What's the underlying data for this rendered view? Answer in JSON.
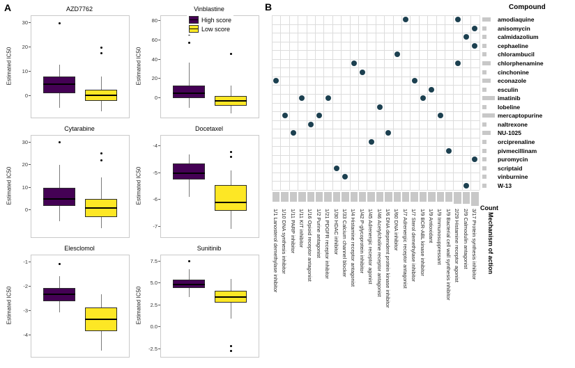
{
  "figure": {
    "panel_a_label": "A",
    "panel_b_label": "B",
    "legend": {
      "high": {
        "label": "High score",
        "color": "#440154"
      },
      "low": {
        "label": "Low score",
        "color": "#FDE725"
      }
    }
  },
  "chart_data": [
    {
      "type": "boxplot",
      "title": "AZD7762",
      "ylabel": "Estimated IC50",
      "ylim": [
        -9,
        33
      ],
      "yticks": [
        [
          0,
          "0"
        ],
        [
          10,
          "10"
        ],
        [
          20,
          "20"
        ],
        [
          30,
          "30"
        ]
      ],
      "series": [
        {
          "name": "High score",
          "color": "#440154",
          "whisker_low": -5,
          "q1": 1,
          "median": 4.8,
          "q3": 8,
          "whisker_high": 13,
          "outliers": [
            30
          ]
        },
        {
          "name": "Low score",
          "color": "#FDE725",
          "whisker_low": -6.5,
          "q1": -2.2,
          "median": 0.3,
          "q3": 2.6,
          "whisker_high": 8,
          "outliers": [
            17.5,
            20
          ]
        }
      ]
    },
    {
      "type": "boxplot",
      "title": "Vinblastine",
      "ylabel": "Estimated IC50",
      "ylim": [
        -20,
        85
      ],
      "yticks": [
        [
          0,
          "0"
        ],
        [
          20,
          "20"
        ],
        [
          40,
          "40"
        ],
        [
          60,
          "60"
        ],
        [
          80,
          "80"
        ]
      ],
      "series": [
        {
          "name": "High score",
          "color": "#440154",
          "whisker_low": -10,
          "q1": 0,
          "median": 5,
          "q3": 13,
          "whisker_high": 37,
          "outliers": [
            57,
            66,
            79
          ]
        },
        {
          "name": "Low score",
          "color": "#FDE725",
          "whisker_low": -16,
          "q1": -8,
          "median": -3,
          "q3": 2.5,
          "whisker_high": 13,
          "outliers": [
            46
          ]
        }
      ]
    },
    {
      "type": "boxplot",
      "title": "Cytarabine",
      "ylabel": "Estimated IC50",
      "ylim": [
        -12,
        33
      ],
      "yticks": [
        [
          0,
          "0"
        ],
        [
          10,
          "10"
        ],
        [
          20,
          "20"
        ],
        [
          30,
          "30"
        ]
      ],
      "series": [
        {
          "name": "High score",
          "color": "#440154",
          "whisker_low": -5,
          "q1": 2,
          "median": 5,
          "q3": 10,
          "whisker_high": 20,
          "outliers": [
            30
          ]
        },
        {
          "name": "Low score",
          "color": "#FDE725",
          "whisker_low": -8,
          "q1": -3,
          "median": 0.8,
          "q3": 5,
          "whisker_high": 14.5,
          "outliers": [
            22,
            25
          ]
        }
      ]
    },
    {
      "type": "boxplot",
      "title": "Docetaxel",
      "ylabel": "Estimated IC50",
      "ylim": [
        -7.4,
        -3.6
      ],
      "yticks": [
        [
          -4,
          "-4"
        ],
        [
          -5,
          "-5"
        ],
        [
          -6,
          "-6"
        ],
        [
          -7,
          "-7"
        ]
      ],
      "series": [
        {
          "name": "High score",
          "color": "#440154",
          "whisker_low": -5.9,
          "q1": -5.25,
          "median": -5.0,
          "q3": -4.65,
          "whisker_high": -4.3,
          "outliers": []
        },
        {
          "name": "Low score",
          "color": "#FDE725",
          "whisker_low": -7.1,
          "q1": -6.4,
          "median": -6.1,
          "q3": -5.45,
          "whisker_high": -4.9,
          "outliers": [
            -4.4,
            -4.2
          ]
        }
      ]
    },
    {
      "type": "boxplot",
      "title": "Elesclomol",
      "ylabel": "Estimated IC50",
      "ylim": [
        -4.9,
        -0.7
      ],
      "yticks": [
        [
          -1,
          "-1"
        ],
        [
          -2,
          "-2"
        ],
        [
          -3,
          "-3"
        ],
        [
          -4,
          "-4"
        ]
      ],
      "series": [
        {
          "name": "High score",
          "color": "#440154",
          "whisker_low": -3.05,
          "q1": -2.6,
          "median": -2.3,
          "q3": -2.05,
          "whisker_high": -1.55,
          "outliers": [
            -1.05
          ]
        },
        {
          "name": "Low score",
          "color": "#FDE725",
          "whisker_low": -4.65,
          "q1": -3.85,
          "median": -3.35,
          "q3": -2.85,
          "whisker_high": -2.3,
          "outliers": []
        }
      ]
    },
    {
      "type": "boxplot",
      "title": "Sunitinib",
      "ylabel": "Estimated IC50",
      "ylim": [
        -3.4,
        8.2
      ],
      "yticks": [
        [
          7.5,
          "7.5"
        ],
        [
          5,
          "5.0"
        ],
        [
          2.5,
          "2.5"
        ],
        [
          0,
          "0.0"
        ],
        [
          -2.5,
          "-2.5"
        ]
      ],
      "series": [
        {
          "name": "High score",
          "color": "#440154",
          "whisker_low": 3.4,
          "q1": 4.5,
          "median": 4.85,
          "q3": 5.4,
          "whisker_high": 6.6,
          "outliers": [
            7.5
          ]
        },
        {
          "name": "Low score",
          "color": "#FDE725",
          "whisker_low": 1.0,
          "q1": 2.8,
          "median": 3.4,
          "q3": 4.15,
          "whisker_high": 5.5,
          "outliers": [
            -2.2,
            -2.7
          ]
        }
      ]
    },
    {
      "type": "dot-matrix",
      "headers": {
        "compound": "Compound",
        "count": "Count",
        "moa": "Mechanism of action"
      },
      "dot_color": "#1c4050",
      "bar_color": "#c8c8c8",
      "rows": [
        {
          "name": "amodiaquine",
          "count": 2
        },
        {
          "name": "anisomycin",
          "count": 1
        },
        {
          "name": "calmidazolium",
          "count": 1
        },
        {
          "name": "cephaeline",
          "count": 1
        },
        {
          "name": "chlorambucil",
          "count": 1
        },
        {
          "name": "chlorphenamine",
          "count": 2
        },
        {
          "name": "cinchonine",
          "count": 1
        },
        {
          "name": "econazole",
          "count": 2
        },
        {
          "name": "esculin",
          "count": 1
        },
        {
          "name": "imatinib",
          "count": 3
        },
        {
          "name": "lobeline",
          "count": 1
        },
        {
          "name": "mercaptopurine",
          "count": 3
        },
        {
          "name": "naltrexone",
          "count": 1
        },
        {
          "name": "NU-1025",
          "count": 2
        },
        {
          "name": "orciprenaline",
          "count": 1
        },
        {
          "name": "pivmecillinam",
          "count": 1
        },
        {
          "name": "puromycin",
          "count": 1
        },
        {
          "name": "scriptaid",
          "count": 1
        },
        {
          "name": "vinburnine",
          "count": 1
        },
        {
          "name": "W-13",
          "count": 1
        }
      ],
      "columns": [
        {
          "count": "1/1",
          "label": "Lanosterol demethylase inhibitor"
        },
        {
          "count": "1/10",
          "label": "DNA synthesis inhibitor"
        },
        {
          "count": "1/11",
          "label": "PARP inhibitor"
        },
        {
          "count": "1/11",
          "label": "KIT inhibitor"
        },
        {
          "count": "1/16",
          "label": "Opioid receptor antagonist"
        },
        {
          "count": "1/2",
          "label": "Purine antagonist"
        },
        {
          "count": "1/21",
          "label": "PDGFR receptor inhibitor"
        },
        {
          "count": "1/30",
          "label": "HDAC inhibitor"
        },
        {
          "count": "1/33",
          "label": "Calcium channel blocker"
        },
        {
          "count": "1/4",
          "label": "Histamine receptor antagonist"
        },
        {
          "count": "1/42",
          "label": "P-glycoprotein inhibitor"
        },
        {
          "count": "1/45",
          "label": "Adrenergic receptor agonist"
        },
        {
          "count": "1/46",
          "label": "Acetylcholine receptor antagonist"
        },
        {
          "count": "1/6",
          "label": "DNA dependent protein kinase inhibitor"
        },
        {
          "count": "1/60",
          "label": "DNA inhibitor"
        },
        {
          "count": "1/7",
          "label": "Adrenergic receptor antagonist"
        },
        {
          "count": "1/7",
          "label": "Sterol demethylase inhibitor"
        },
        {
          "count": "1/9",
          "label": "BCR-ABL kinase inhibitor"
        },
        {
          "count": "1/9",
          "label": "Antioxidant"
        },
        {
          "count": "1/9",
          "label": "Immunosuppressant"
        },
        {
          "count": "1/9",
          "label": "Bacterial cell wall synthesis inhibitor"
        },
        {
          "count": "2/29",
          "label": "Histamine receptor agonist"
        },
        {
          "count": "2/9",
          "label": "Calmodulin antagonist"
        },
        {
          "count": "3/17",
          "label": "Protein synthesis inhibitor"
        }
      ],
      "dots": [
        [
          1,
          8
        ],
        [
          2,
          12
        ],
        [
          3,
          14
        ],
        [
          4,
          10
        ],
        [
          5,
          13
        ],
        [
          6,
          12
        ],
        [
          7,
          10
        ],
        [
          8,
          18
        ],
        [
          9,
          19
        ],
        [
          10,
          6
        ],
        [
          11,
          7
        ],
        [
          12,
          15
        ],
        [
          13,
          11
        ],
        [
          14,
          14
        ],
        [
          15,
          5
        ],
        [
          16,
          1
        ],
        [
          17,
          8
        ],
        [
          18,
          10
        ],
        [
          19,
          9
        ],
        [
          20,
          12
        ],
        [
          21,
          16
        ],
        [
          22,
          1
        ],
        [
          22,
          6
        ],
        [
          23,
          3
        ],
        [
          23,
          20
        ],
        [
          24,
          2
        ],
        [
          24,
          4
        ],
        [
          24,
          17
        ]
      ]
    }
  ]
}
